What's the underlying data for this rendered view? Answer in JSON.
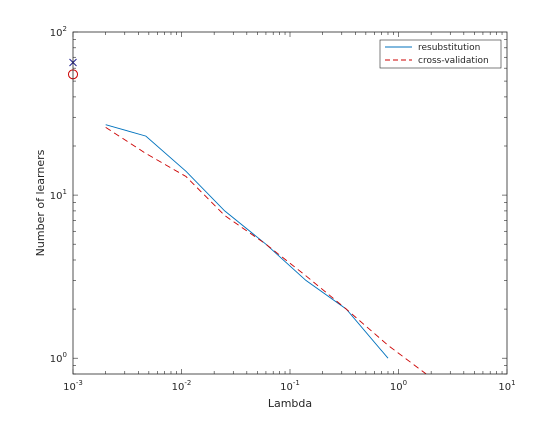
{
  "chart_data": {
    "type": "line",
    "title": "",
    "xlabel": "Lambda",
    "ylabel": "Number of learners",
    "xscale": "log",
    "yscale": "log",
    "xlim": [
      0.001,
      10
    ],
    "ylim": [
      0.8,
      100
    ],
    "grid": false,
    "legend_position": "top-right",
    "x_ticks": [
      {
        "base": "10",
        "exp": "-3",
        "value": 0.001
      },
      {
        "base": "10",
        "exp": "-2",
        "value": 0.01
      },
      {
        "base": "10",
        "exp": "-1",
        "value": 0.1
      },
      {
        "base": "10",
        "exp": "0",
        "value": 1
      },
      {
        "base": "10",
        "exp": "1",
        "value": 10
      }
    ],
    "y_ticks": [
      {
        "base": "10",
        "exp": "0",
        "value": 1
      },
      {
        "base": "10",
        "exp": "1",
        "value": 10
      },
      {
        "base": "10",
        "exp": "2",
        "value": 100
      }
    ],
    "series": [
      {
        "name": "resubstitution",
        "color": "#0072bd",
        "style": "solid",
        "x": [
          0.002,
          0.0047,
          0.011,
          0.025,
          0.06,
          0.14,
          0.33,
          0.8
        ],
        "y": [
          27,
          23,
          14,
          8,
          5,
          3,
          2,
          1
        ]
      },
      {
        "name": "cross-validation",
        "color": "#cc0000",
        "style": "dashed",
        "x": [
          0.002,
          0.0047,
          0.011,
          0.025,
          0.06,
          0.14,
          0.33,
          0.8,
          1.8
        ],
        "y": [
          26,
          18,
          13,
          7.5,
          5,
          3.2,
          2,
          1.2,
          0.8
        ]
      }
    ],
    "markers": [
      {
        "name": "resubstitution-minimum",
        "symbol": "x",
        "color": "#1f1f8f",
        "x": 0.001,
        "y": 65
      },
      {
        "name": "cross-validation-minimum",
        "symbol": "o",
        "color": "#cc0000",
        "x": 0.001,
        "y": 55
      }
    ]
  }
}
